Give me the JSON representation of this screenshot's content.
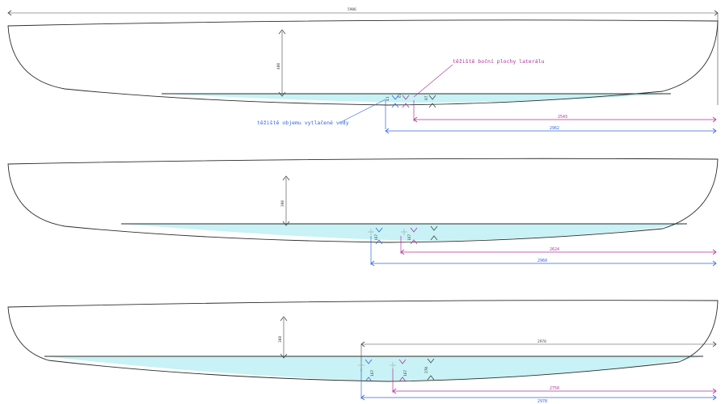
{
  "overall_length_label": "5906",
  "annotations": {
    "lateral_centroid": "těžiště boční plochy laterálu",
    "volume_centroid": "těžiště objemu vytlačené vody"
  },
  "views": [
    {
      "depth_label": "400",
      "blue_length": "2962",
      "mag_length": "2543",
      "small_labels": [
        "41",
        "67",
        "87"
      ]
    },
    {
      "depth_label": "390",
      "blue_length": "2960",
      "mag_length": "2624",
      "small_labels": [
        "167",
        "167"
      ]
    },
    {
      "depth_label": "308",
      "top_length": "2978",
      "blue_length": "2978",
      "mag_length": "2750",
      "small_labels": [
        "167",
        "167",
        "270"
      ]
    }
  ],
  "colors": {
    "water": "#c8f2f5",
    "outline": "#2b2b2b",
    "blue_dimension": "#3366dd",
    "magenta_dimension": "#b0339a"
  }
}
